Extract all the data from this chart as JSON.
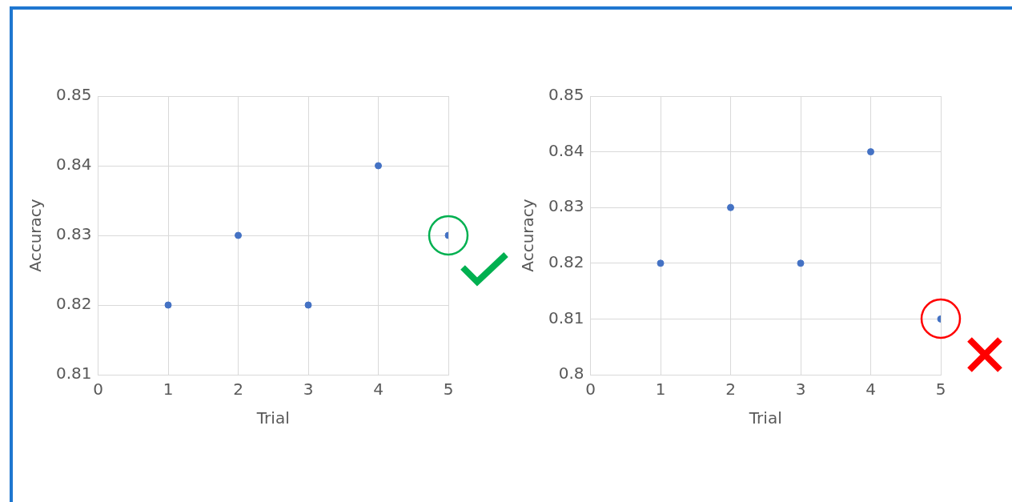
{
  "chart_data": [
    {
      "type": "scatter",
      "xlabel": "Trial",
      "ylabel": "Accuracy",
      "x": [
        1,
        2,
        3,
        4,
        5
      ],
      "series": [
        {
          "color": "#4472c4",
          "values": [
            0.82,
            0.83,
            0.82,
            0.84,
            0.83
          ]
        }
      ],
      "xlim": [
        0,
        5
      ],
      "xticks": [
        0,
        1,
        2,
        3,
        4,
        5
      ],
      "ylim": [
        0.81,
        0.85
      ],
      "yticks": [
        0.81,
        0.82,
        0.83,
        0.84,
        0.85
      ],
      "grid": true,
      "legend": false,
      "marker": "circle"
    },
    {
      "type": "scatter",
      "xlabel": "Trial",
      "ylabel": "Accuracy",
      "x": [
        1,
        2,
        3,
        4,
        5
      ],
      "series": [
        {
          "color": "#4472c4",
          "values": [
            0.82,
            0.83,
            0.82,
            0.84,
            0.81
          ]
        }
      ],
      "xlim": [
        0,
        5
      ],
      "xticks": [
        0,
        1,
        2,
        3,
        4,
        5
      ],
      "ylim": [
        0.8,
        0.85
      ],
      "yticks": [
        {
          "value": 0.8,
          "label": "0.8"
        },
        0.81,
        0.82,
        0.83,
        0.84,
        0.85
      ],
      "grid": true,
      "legend": false,
      "marker": "circle"
    }
  ]
}
